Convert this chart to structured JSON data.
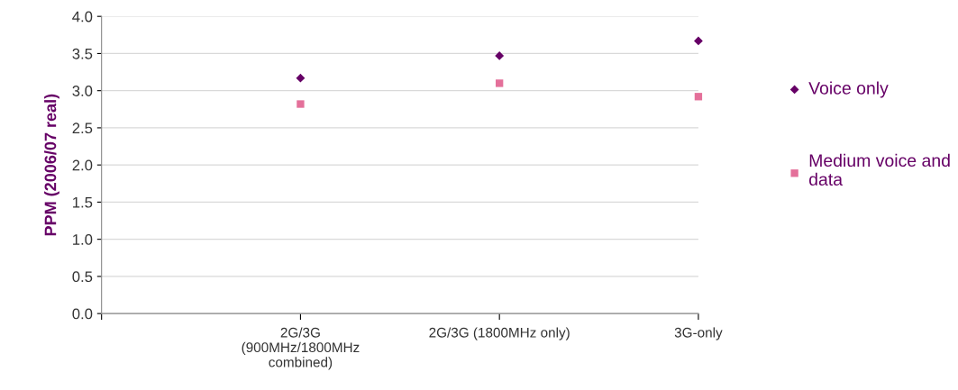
{
  "chart_data": {
    "type": "scatter",
    "ylabel": "PPM (2006/07 real)",
    "categories": [
      null,
      "2G/3G\n(900MHz/1800MHz\ncombined)",
      "2G/3G (1800MHz only)",
      "3G-only"
    ],
    "series": [
      {
        "name": "Voice only",
        "color": "#660066",
        "marker": "diamond",
        "values": [
          null,
          3.17,
          3.47,
          3.67
        ]
      },
      {
        "name": "Medium voice and\ndata",
        "color": "#e4709a",
        "marker": "square",
        "values": [
          null,
          2.82,
          3.1,
          2.92
        ]
      }
    ],
    "ylim": [
      0,
      4
    ],
    "yticks": [
      {
        "value": 0,
        "label": "0.0"
      },
      {
        "value": 0.5,
        "label": "0.5"
      },
      {
        "value": 1,
        "label": "1.0"
      },
      {
        "value": 1.5,
        "label": "1.5"
      },
      {
        "value": 2,
        "label": "2.0"
      },
      {
        "value": 2.5,
        "label": "2.5"
      },
      {
        "value": 3,
        "label": "3.0"
      },
      {
        "value": 3.5,
        "label": "3.5"
      },
      {
        "value": 4,
        "label": "4.0"
      }
    ],
    "grid": "y",
    "legend": "right"
  }
}
